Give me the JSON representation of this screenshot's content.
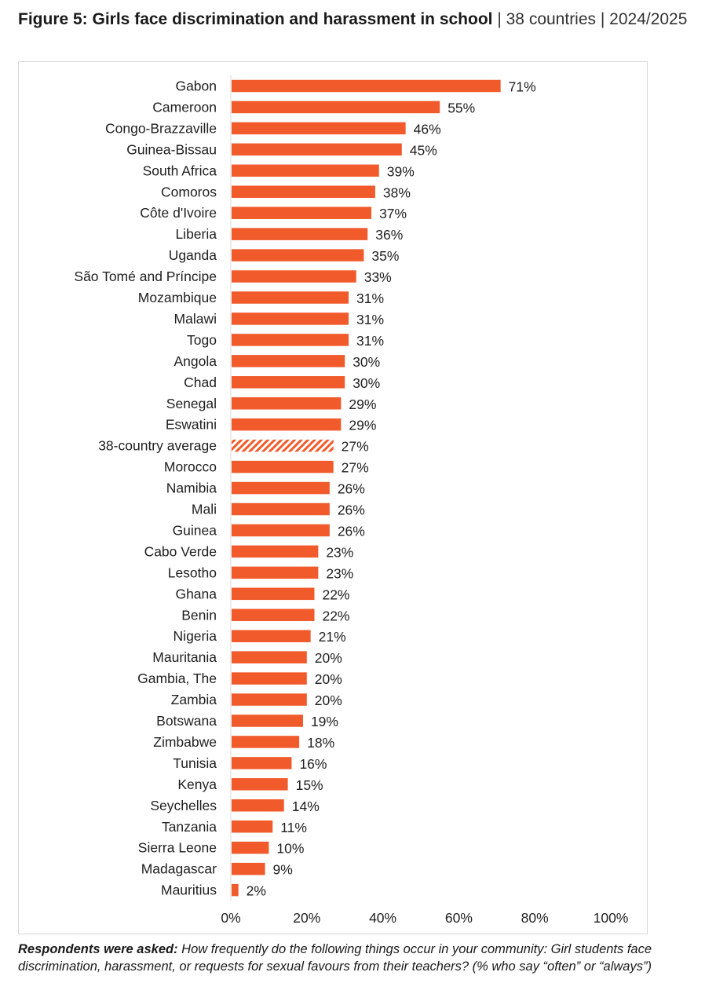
{
  "header": {
    "title_bold": "Figure 5: Girls face discrimination and harassment in school",
    "title_light": " | 38 countries | 2024/2025"
  },
  "colors": {
    "bar": "#f15a2b",
    "average_hatch": "#f15a2b",
    "axis_line": "#d9d9d9",
    "frame": "#d9d9d9"
  },
  "chart_data": {
    "type": "bar",
    "orientation": "horizontal",
    "title": "Figure 5: Girls face discrimination and harassment in school | 38 countries | 2024/2025",
    "xlabel": "",
    "ylabel": "",
    "xlim": [
      0,
      100
    ],
    "x_ticks": [
      "0%",
      "20%",
      "40%",
      "60%",
      "80%",
      "100%"
    ],
    "x_tick_values": [
      0,
      20,
      40,
      60,
      80,
      100
    ],
    "grid": false,
    "legend": "none",
    "value_suffix": "%",
    "categories": [
      "Gabon",
      "Cameroon",
      "Congo-Brazzaville",
      "Guinea-Bissau",
      "South Africa",
      "Comoros",
      "Côte d'Ivoire",
      "Liberia",
      "Uganda",
      "São Tomé and Príncipe",
      "Mozambique",
      "Malawi",
      "Togo",
      "Angola",
      "Chad",
      "Senegal",
      "Eswatini",
      "38-country average",
      "Morocco",
      "Namibia",
      "Mali",
      "Guinea",
      "Cabo Verde",
      "Lesotho",
      "Ghana",
      "Benin",
      "Nigeria",
      "Mauritania",
      "Gambia, The",
      "Zambia",
      "Botswana",
      "Zimbabwe",
      "Tunisia",
      "Kenya",
      "Seychelles",
      "Tanzania",
      "Sierra Leone",
      "Madagascar",
      "Mauritius"
    ],
    "values": [
      71,
      55,
      46,
      45,
      39,
      38,
      37,
      36,
      35,
      33,
      31,
      31,
      31,
      30,
      30,
      29,
      29,
      27,
      27,
      26,
      26,
      26,
      23,
      23,
      22,
      22,
      21,
      20,
      20,
      20,
      19,
      18,
      16,
      15,
      14,
      11,
      10,
      9,
      2
    ],
    "highlight": {
      "category": "38-country average",
      "style": "hatched"
    }
  },
  "footnote": {
    "lead": "Respondents were asked:",
    "text": " How frequently do the following things occur in your community: Girl students face discrimination, harassment, or requests for sexual favours from their teachers? (% who say “often” or “always”)"
  }
}
